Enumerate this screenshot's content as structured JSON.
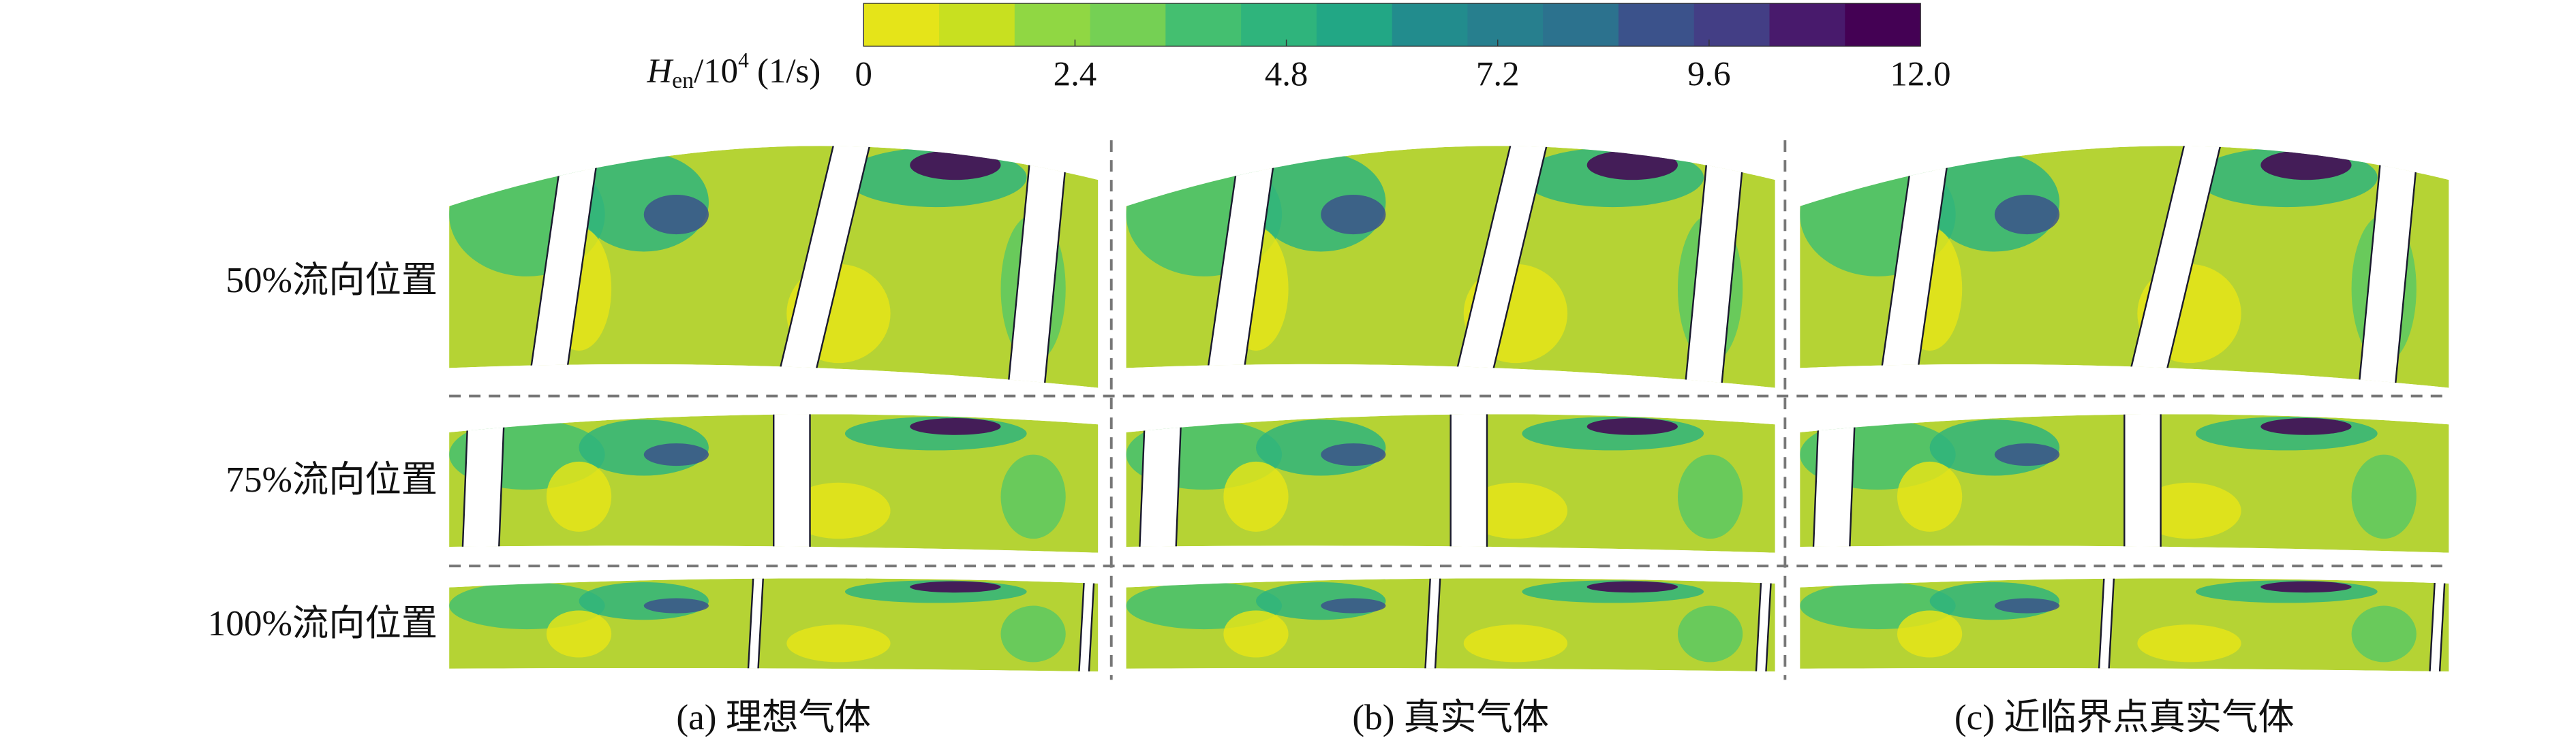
{
  "colorbar": {
    "label": {
      "symbol": "H",
      "subscript": "en",
      "scale": "/10",
      "exponent": "4",
      "unit": "(1/s)"
    },
    "lim": [
      0,
      12
    ],
    "ticks": [
      0,
      2.4,
      4.8,
      7.2,
      9.6,
      {
        "value": 12,
        "label": "12.0"
      }
    ],
    "colors": [
      "#e5e419",
      "#c8e020",
      "#addc30",
      "#90d743",
      "#75d054",
      "#5cc863",
      "#44bf70",
      "#2fb47c",
      "#22a785",
      "#1f998a",
      "#228c8d",
      "#277f8e",
      "#2c728e",
      "#31668e",
      "#3b528b",
      "#433e85",
      "#472d7b",
      "#481a6c",
      "#440154"
    ]
  },
  "rows": [
    "50%流向位置",
    "75%流向位置",
    "100%流向位置"
  ],
  "columns": [
    "(a) 理想气体",
    "(b) 真实气体",
    "(c) 近临界点真实气体"
  ]
}
